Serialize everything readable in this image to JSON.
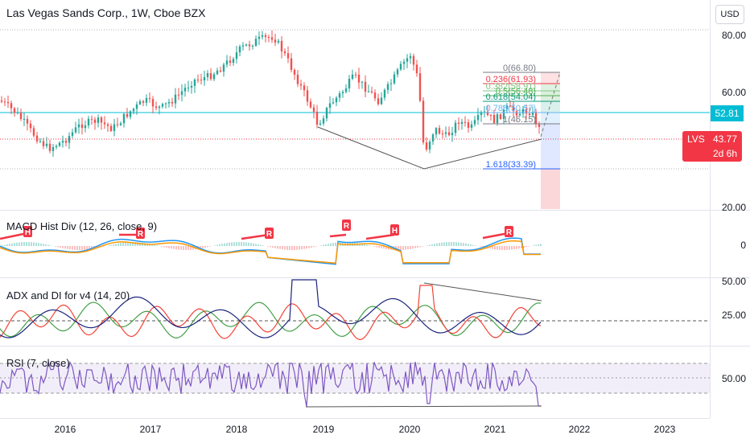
{
  "main": {
    "title": "Las Vegas Sands Corp., 1W, Cboe BZX",
    "currency_button": "USD",
    "price_labels": [
      "80.00",
      "60.00",
      "20.00"
    ],
    "horizontal_level": "52.81",
    "last_price": {
      "symbol": "LVS",
      "price": "43.77",
      "countdown": "2d 6h"
    },
    "fib_levels": [
      {
        "label": "0(66.80)",
        "color": "#787b86"
      },
      {
        "label": "0.236(61.93)",
        "color": "#f23645"
      },
      {
        "label": "0.382(58.91)",
        "color": "#81c784"
      },
      {
        "label": "0.5(56.48)",
        "color": "#4caf50"
      },
      {
        "label": "0.618(54.04)",
        "color": "#089981"
      },
      {
        "label": "0.786(50.57)",
        "color": "#64b5f6"
      },
      {
        "label": "1(46.15)",
        "color": "#787b86"
      },
      {
        "label": "1.618(33.39)",
        "color": "#2962ff"
      }
    ]
  },
  "macd": {
    "title": "MACD Hist Div (12, 26, close, 9)",
    "zero_label": "0",
    "markers": [
      "H",
      "R",
      "R",
      "R",
      "H",
      "R"
    ]
  },
  "adx": {
    "title": "ADX and DI for v4 (14, 20)",
    "labels": [
      "50.00",
      "25.00"
    ]
  },
  "rsi": {
    "title": "RSI (7, close)",
    "labels": [
      "50.00"
    ]
  },
  "time_axis": [
    "2016",
    "2017",
    "2018",
    "2019",
    "2020",
    "2021",
    "2022",
    "2023"
  ],
  "colors": {
    "up": "#26a69a",
    "down": "#ef5350",
    "macd": "#2196f3",
    "signal": "#ff9800",
    "adx": "#1a237e",
    "di_plus": "#43a047",
    "di_minus": "#f44336",
    "rsi": "#7e57c2",
    "level_line": "#00bcd4",
    "last_price": "#f23645"
  }
}
